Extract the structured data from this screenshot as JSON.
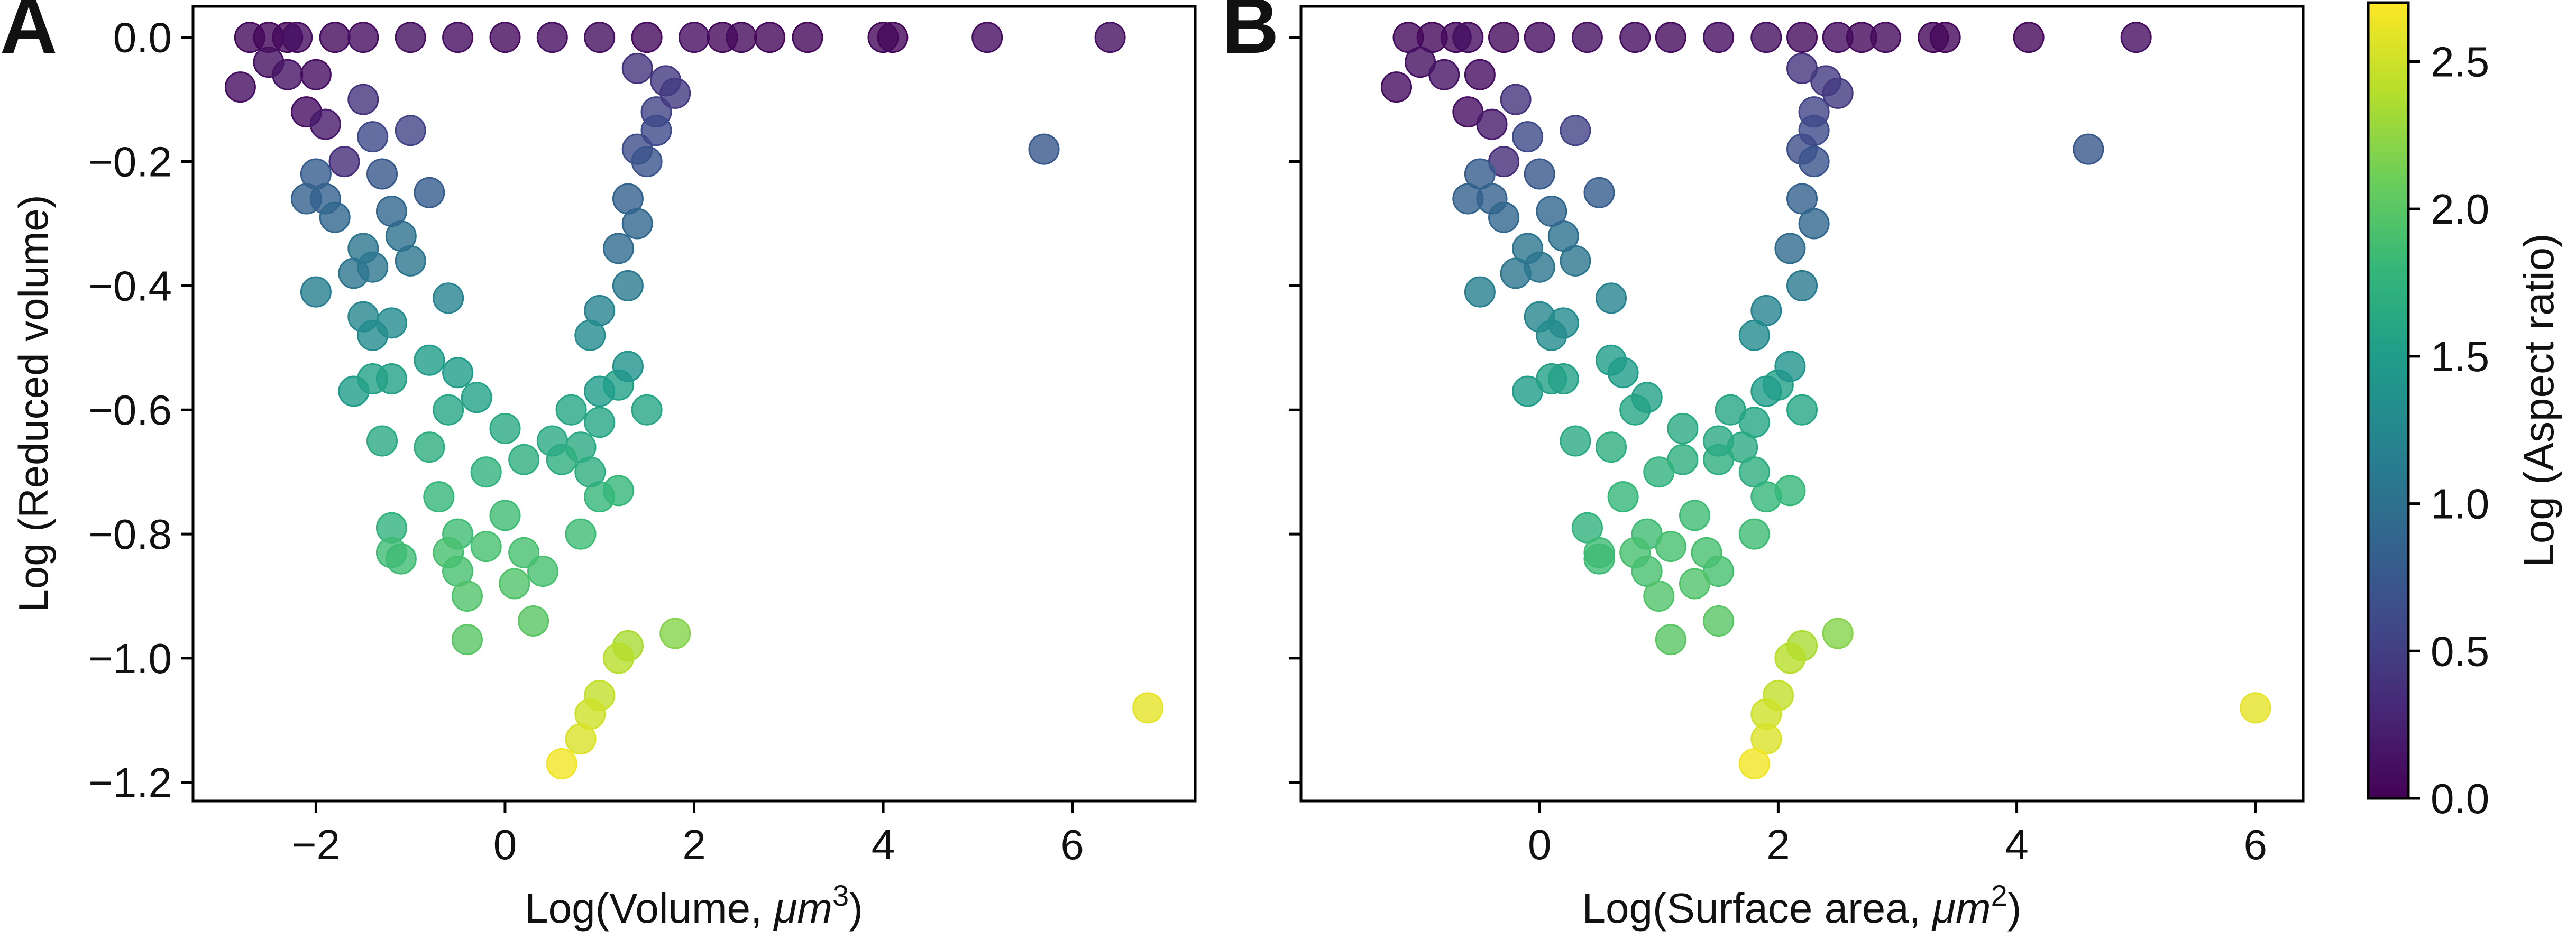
{
  "panels": [
    {
      "letter": "A",
      "xlabel_prefix": "Log(Volume, ",
      "xlabel_unit": "μm",
      "xlabel_exp": "3",
      "xlabel_suffix": ")"
    },
    {
      "letter": "B",
      "xlabel_prefix": "Log(Surface area, ",
      "xlabel_unit": "μm",
      "xlabel_exp": "2",
      "xlabel_suffix": ")"
    }
  ],
  "colorbar": {
    "label": "Log (Aspect ratio)",
    "ticks": [
      "0.0",
      "0.5",
      "1.0",
      "1.5",
      "2.0",
      "2.5"
    ]
  },
  "colors": {
    "viridis": [
      "#440154",
      "#482777",
      "#3f4a8a",
      "#31678e",
      "#26838f",
      "#1f9d8a",
      "#35b779",
      "#6cce5a",
      "#b6de2b",
      "#fde725"
    ]
  },
  "chart_data": [
    {
      "type": "scatter",
      "panel": "A",
      "xlabel": "Log(Volume, μm^3)",
      "ylabel": "Log (Reduced volume)",
      "xlim": [
        -3.3,
        7.3
      ],
      "ylim": [
        -1.23,
        0.05
      ],
      "xticks": [
        -2,
        0,
        2,
        4,
        6
      ],
      "yticks": [
        0.0,
        -0.2,
        -0.4,
        -0.6,
        -0.8,
        -1.0,
        -1.2
      ],
      "ytick_labels": [
        "0.0",
        "−0.2",
        "−0.4",
        "−0.6",
        "−0.8",
        "−1.0",
        "−1.2"
      ],
      "color_by": "Log (Aspect ratio)",
      "clim": [
        0,
        2.7
      ],
      "points": [
        [
          -2.7,
          0,
          0.08
        ],
        [
          -2.5,
          0,
          0.05
        ],
        [
          -2.3,
          0,
          0.06
        ],
        [
          -2.2,
          0,
          0.1
        ],
        [
          -1.8,
          0,
          0.08
        ],
        [
          -1.5,
          0,
          0.1
        ],
        [
          -1.0,
          0,
          0.12
        ],
        [
          -0.5,
          0,
          0.1
        ],
        [
          0,
          0,
          0.08
        ],
        [
          0.5,
          0,
          0.1
        ],
        [
          1.0,
          0,
          0.12
        ],
        [
          1.5,
          0,
          0.08
        ],
        [
          2.0,
          0,
          0.1
        ],
        [
          2.3,
          0,
          0.06
        ],
        [
          2.5,
          0,
          0.08
        ],
        [
          2.8,
          0,
          0.05
        ],
        [
          3.2,
          0,
          0.05
        ],
        [
          4.0,
          0,
          0.06
        ],
        [
          4.1,
          0,
          0.05
        ],
        [
          5.1,
          0,
          0.1
        ],
        [
          6.4,
          0,
          0.12
        ],
        [
          -2.8,
          -0.08,
          0.1
        ],
        [
          -2.5,
          -0.04,
          0.12
        ],
        [
          -2.3,
          -0.06,
          0.15
        ],
        [
          -2.1,
          -0.12,
          0.1
        ],
        [
          -2.0,
          -0.06,
          0.1
        ],
        [
          -1.9,
          -0.14,
          0.2
        ],
        [
          -1.7,
          -0.2,
          0.35
        ],
        [
          -2.0,
          -0.22,
          0.8
        ],
        [
          -2.1,
          -0.26,
          0.85
        ],
        [
          -1.9,
          -0.26,
          0.85
        ],
        [
          -1.8,
          -0.29,
          0.9
        ],
        [
          -1.5,
          -0.34,
          1.05
        ],
        [
          -1.4,
          -0.37,
          1.05
        ],
        [
          -1.6,
          -0.38,
          1.05
        ],
        [
          -2.0,
          -0.41,
          1.15
        ],
        [
          -1.5,
          -0.45,
          1.25
        ],
        [
          -1.4,
          -0.48,
          1.3
        ],
        [
          -1.2,
          -0.46,
          1.3
        ],
        [
          -1.6,
          -0.57,
          1.5
        ],
        [
          -1.4,
          -0.55,
          1.55
        ],
        [
          -1.2,
          -0.55,
          1.55
        ],
        [
          -1.3,
          -0.65,
          1.65
        ],
        [
          -1.2,
          -0.79,
          1.75
        ],
        [
          -1.2,
          -0.83,
          1.85
        ],
        [
          -1.1,
          -0.84,
          1.85
        ],
        [
          -0.8,
          -0.52,
          1.5
        ],
        [
          -0.6,
          -0.6,
          1.6
        ],
        [
          -0.8,
          -0.66,
          1.7
        ],
        [
          -0.7,
          -0.74,
          1.8
        ],
        [
          -0.5,
          -0.8,
          1.85
        ],
        [
          -0.6,
          -0.83,
          1.9
        ],
        [
          -0.5,
          -0.86,
          1.9
        ],
        [
          -0.4,
          -0.9,
          1.95
        ],
        [
          -0.4,
          -0.97,
          2.0
        ],
        [
          -0.2,
          -0.82,
          1.9
        ],
        [
          0,
          -0.77,
          1.85
        ],
        [
          0.2,
          -0.83,
          1.9
        ],
        [
          0.4,
          -0.86,
          1.9
        ],
        [
          0.1,
          -0.88,
          1.95
        ],
        [
          0.3,
          -0.94,
          2.0
        ],
        [
          0.8,
          -0.8,
          1.85
        ],
        [
          1.0,
          -0.74,
          1.8
        ],
        [
          1.2,
          -0.73,
          1.8
        ],
        [
          1.5,
          -0.6,
          1.6
        ],
        [
          1.2,
          -0.56,
          1.55
        ],
        [
          1.0,
          -0.62,
          1.6
        ],
        [
          0.8,
          -0.66,
          1.65
        ],
        [
          0.6,
          -0.68,
          1.7
        ],
        [
          0.9,
          -0.7,
          1.7
        ],
        [
          1.3,
          -0.98,
          2.35
        ],
        [
          1.2,
          -1.0,
          2.4
        ],
        [
          1.0,
          -1.06,
          2.45
        ],
        [
          0.9,
          -1.09,
          2.5
        ],
        [
          0.8,
          -1.13,
          2.55
        ],
        [
          0.6,
          -1.17,
          2.65
        ],
        [
          1.8,
          -0.96,
          2.2
        ],
        [
          6.8,
          -1.08,
          2.6
        ],
        [
          5.7,
          -0.18,
          0.75
        ],
        [
          1.4,
          -0.05,
          0.4
        ],
        [
          1.7,
          -0.07,
          0.45
        ],
        [
          1.6,
          -0.12,
          0.55
        ],
        [
          1.4,
          -0.18,
          0.65
        ],
        [
          1.5,
          -0.2,
          0.7
        ],
        [
          1.3,
          -0.26,
          0.85
        ],
        [
          1.4,
          -0.3,
          0.9
        ],
        [
          1.2,
          -0.34,
          0.95
        ],
        [
          1.3,
          -0.4,
          1.1
        ],
        [
          1.0,
          -0.44,
          1.2
        ],
        [
          0.9,
          -0.48,
          1.3
        ],
        [
          1.3,
          -0.53,
          1.4
        ],
        [
          1.0,
          -0.57,
          1.5
        ],
        [
          0.7,
          -0.6,
          1.6
        ],
        [
          1.6,
          -0.15,
          0.6
        ],
        [
          1.8,
          -0.09,
          0.45
        ],
        [
          0.5,
          -0.65,
          1.65
        ],
        [
          0.2,
          -0.68,
          1.7
        ],
        [
          -0.2,
          -0.7,
          1.75
        ],
        [
          0,
          -0.63,
          1.65
        ],
        [
          -0.3,
          -0.58,
          1.55
        ],
        [
          -0.5,
          -0.54,
          1.5
        ],
        [
          -1.0,
          -0.36,
          1.05
        ],
        [
          -1.1,
          -0.32,
          1.0
        ],
        [
          -1.2,
          -0.28,
          0.9
        ],
        [
          -1.3,
          -0.22,
          0.75
        ],
        [
          -1.4,
          -0.16,
          0.6
        ],
        [
          -1.5,
          -0.1,
          0.4
        ],
        [
          -1.0,
          -0.15,
          0.55
        ],
        [
          -0.8,
          -0.25,
          0.8
        ],
        [
          -0.6,
          -0.42,
          1.2
        ]
      ]
    },
    {
      "type": "scatter",
      "panel": "B",
      "xlabel": "Log(Surface area, μm^2)",
      "ylabel": "",
      "xlim": [
        -2.0,
        6.4
      ],
      "ylim": [
        -1.23,
        0.05
      ],
      "xticks": [
        0,
        2,
        4,
        6
      ],
      "yticks": [
        0.0,
        -0.2,
        -0.4,
        -0.6,
        -0.8,
        -1.0,
        -1.2
      ],
      "color_by": "Log (Aspect ratio)",
      "clim": [
        0,
        2.7
      ],
      "points": [
        [
          -1.1,
          0,
          0.08
        ],
        [
          -0.9,
          0,
          0.05
        ],
        [
          -0.7,
          0,
          0.06
        ],
        [
          -0.6,
          0,
          0.1
        ],
        [
          -0.3,
          0,
          0.08
        ],
        [
          0,
          0,
          0.1
        ],
        [
          0.4,
          0,
          0.12
        ],
        [
          0.8,
          0,
          0.1
        ],
        [
          1.1,
          0,
          0.08
        ],
        [
          1.5,
          0,
          0.1
        ],
        [
          1.9,
          0,
          0.12
        ],
        [
          2.2,
          0,
          0.08
        ],
        [
          2.5,
          0,
          0.1
        ],
        [
          2.7,
          0,
          0.06
        ],
        [
          2.9,
          0,
          0.08
        ],
        [
          3.3,
          0,
          0.05
        ],
        [
          3.4,
          0,
          0.05
        ],
        [
          4.1,
          0,
          0.06
        ],
        [
          5.0,
          0,
          0.1
        ],
        [
          -1.2,
          -0.08,
          0.1
        ],
        [
          -1.0,
          -0.04,
          0.12
        ],
        [
          -0.8,
          -0.06,
          0.15
        ],
        [
          -0.6,
          -0.12,
          0.1
        ],
        [
          -0.5,
          -0.06,
          0.1
        ],
        [
          -0.4,
          -0.14,
          0.2
        ],
        [
          -0.3,
          -0.2,
          0.35
        ],
        [
          -0.5,
          -0.22,
          0.8
        ],
        [
          -0.6,
          -0.26,
          0.85
        ],
        [
          -0.4,
          -0.26,
          0.85
        ],
        [
          -0.3,
          -0.29,
          0.9
        ],
        [
          -0.1,
          -0.34,
          1.05
        ],
        [
          0,
          -0.37,
          1.05
        ],
        [
          -0.2,
          -0.38,
          1.05
        ],
        [
          -0.5,
          -0.41,
          1.15
        ],
        [
          0,
          -0.45,
          1.25
        ],
        [
          0.1,
          -0.48,
          1.3
        ],
        [
          0.2,
          -0.46,
          1.3
        ],
        [
          -0.1,
          -0.57,
          1.5
        ],
        [
          0.1,
          -0.55,
          1.55
        ],
        [
          0.2,
          -0.55,
          1.55
        ],
        [
          0.3,
          -0.65,
          1.65
        ],
        [
          0.4,
          -0.79,
          1.75
        ],
        [
          0.5,
          -0.83,
          1.85
        ],
        [
          0.5,
          -0.84,
          1.85
        ],
        [
          0.6,
          -0.52,
          1.5
        ],
        [
          0.8,
          -0.6,
          1.6
        ],
        [
          0.6,
          -0.66,
          1.7
        ],
        [
          0.7,
          -0.74,
          1.8
        ],
        [
          0.9,
          -0.8,
          1.85
        ],
        [
          0.8,
          -0.83,
          1.9
        ],
        [
          0.9,
          -0.86,
          1.9
        ],
        [
          1.0,
          -0.9,
          1.95
        ],
        [
          1.1,
          -0.97,
          2.0
        ],
        [
          1.1,
          -0.82,
          1.9
        ],
        [
          1.3,
          -0.77,
          1.85
        ],
        [
          1.4,
          -0.83,
          1.9
        ],
        [
          1.5,
          -0.86,
          1.9
        ],
        [
          1.3,
          -0.88,
          1.95
        ],
        [
          1.5,
          -0.94,
          2.0
        ],
        [
          1.8,
          -0.8,
          1.85
        ],
        [
          1.9,
          -0.74,
          1.8
        ],
        [
          2.1,
          -0.73,
          1.8
        ],
        [
          2.2,
          -0.6,
          1.6
        ],
        [
          2.0,
          -0.56,
          1.55
        ],
        [
          1.8,
          -0.62,
          1.6
        ],
        [
          1.7,
          -0.66,
          1.65
        ],
        [
          1.5,
          -0.68,
          1.7
        ],
        [
          1.8,
          -0.7,
          1.7
        ],
        [
          2.2,
          -0.98,
          2.35
        ],
        [
          2.1,
          -1.0,
          2.4
        ],
        [
          2.0,
          -1.06,
          2.45
        ],
        [
          1.9,
          -1.09,
          2.5
        ],
        [
          1.9,
          -1.13,
          2.55
        ],
        [
          1.8,
          -1.17,
          2.65
        ],
        [
          2.5,
          -0.96,
          2.2
        ],
        [
          6.0,
          -1.08,
          2.6
        ],
        [
          4.6,
          -0.18,
          0.75
        ],
        [
          2.2,
          -0.05,
          0.4
        ],
        [
          2.4,
          -0.07,
          0.45
        ],
        [
          2.3,
          -0.12,
          0.55
        ],
        [
          2.2,
          -0.18,
          0.65
        ],
        [
          2.3,
          -0.2,
          0.7
        ],
        [
          2.2,
          -0.26,
          0.85
        ],
        [
          2.3,
          -0.3,
          0.9
        ],
        [
          2.1,
          -0.34,
          0.95
        ],
        [
          2.2,
          -0.4,
          1.1
        ],
        [
          1.9,
          -0.44,
          1.2
        ],
        [
          1.8,
          -0.48,
          1.3
        ],
        [
          2.1,
          -0.53,
          1.4
        ],
        [
          1.9,
          -0.57,
          1.5
        ],
        [
          1.6,
          -0.6,
          1.6
        ],
        [
          2.3,
          -0.15,
          0.6
        ],
        [
          2.5,
          -0.09,
          0.45
        ],
        [
          1.5,
          -0.65,
          1.65
        ],
        [
          1.2,
          -0.68,
          1.7
        ],
        [
          1.0,
          -0.7,
          1.75
        ],
        [
          1.2,
          -0.63,
          1.65
        ],
        [
          0.9,
          -0.58,
          1.55
        ],
        [
          0.7,
          -0.54,
          1.5
        ],
        [
          0.3,
          -0.36,
          1.05
        ],
        [
          0.2,
          -0.32,
          1.0
        ],
        [
          0.1,
          -0.28,
          0.9
        ],
        [
          0,
          -0.22,
          0.75
        ],
        [
          -0.1,
          -0.16,
          0.6
        ],
        [
          -0.2,
          -0.1,
          0.4
        ],
        [
          0.3,
          -0.15,
          0.55
        ],
        [
          0.5,
          -0.25,
          0.8
        ],
        [
          0.6,
          -0.42,
          1.2
        ]
      ]
    }
  ]
}
